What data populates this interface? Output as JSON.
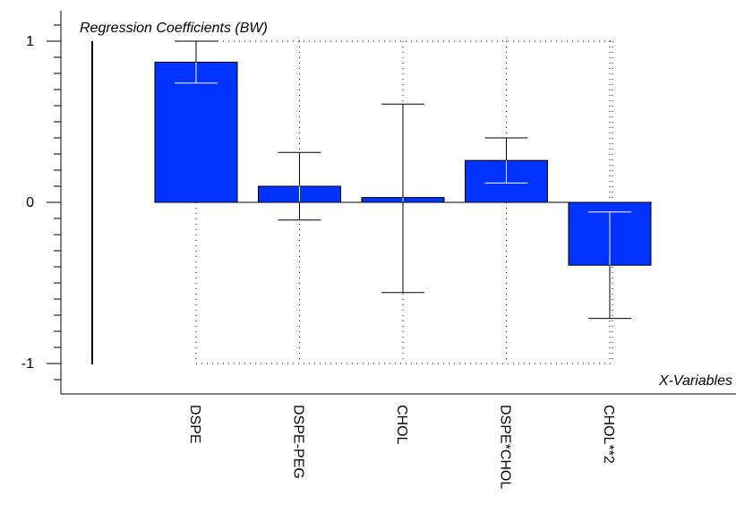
{
  "chart_data": {
    "type": "bar",
    "title": "Regression Coefficients (BW)",
    "xlabel": "X-Variables",
    "ylabel": "",
    "ylim": [
      -1.22,
      1.2
    ],
    "yticks": [
      {
        "value": 1,
        "label": "1"
      },
      {
        "value": 0,
        "label": "0"
      },
      {
        "value": -1,
        "label": "-1"
      }
    ],
    "categories": [
      "DSPE",
      "DSPE-PEG",
      "CHOL",
      "DSPE*CHOL",
      "CHOL**2"
    ],
    "values": [
      0.87,
      0.1,
      0.03,
      0.26,
      -0.39
    ],
    "error_low": [
      0.74,
      -0.11,
      -0.56,
      0.12,
      -0.72
    ],
    "error_high": [
      1.0,
      0.31,
      0.61,
      0.4,
      -0.06
    ],
    "grid": "dotted",
    "bar_color": "#0033ff"
  }
}
